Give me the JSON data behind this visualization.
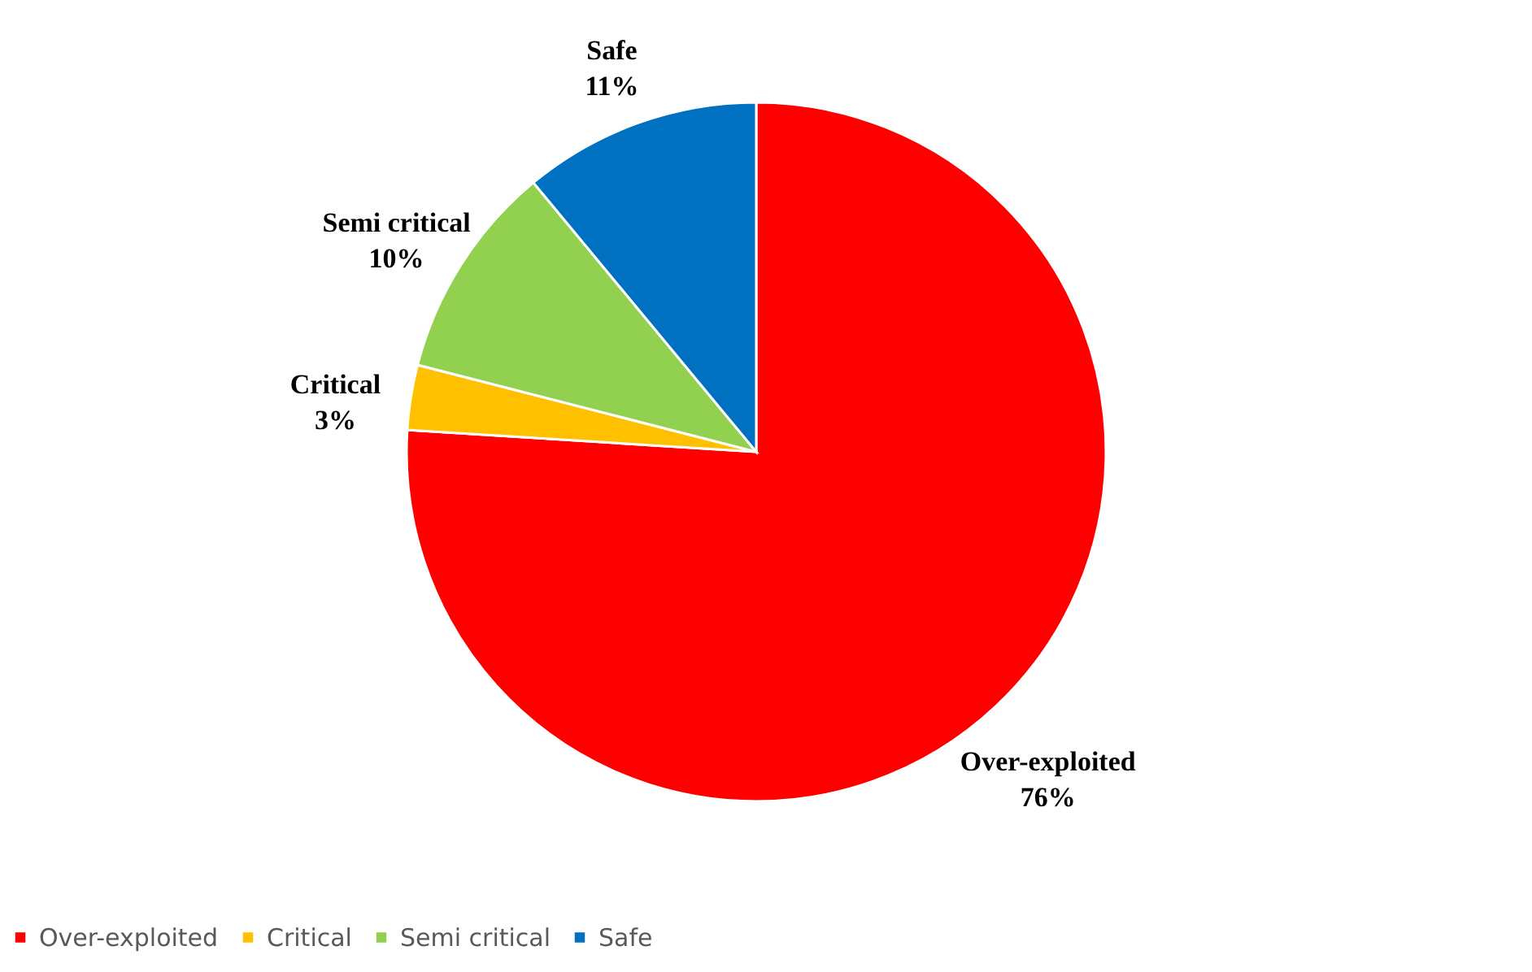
{
  "chart_data": {
    "type": "pie",
    "categories": [
      "Over-exploited",
      "Critical",
      "Semi critical",
      "Safe"
    ],
    "values": [
      76,
      3,
      10,
      11
    ],
    "colors": [
      "#ff0000",
      "#ffc000",
      "#92d050",
      "#0070c0"
    ],
    "value_labels": [
      "76%",
      "3%",
      "10%",
      "11%"
    ],
    "legend": "bottom"
  }
}
